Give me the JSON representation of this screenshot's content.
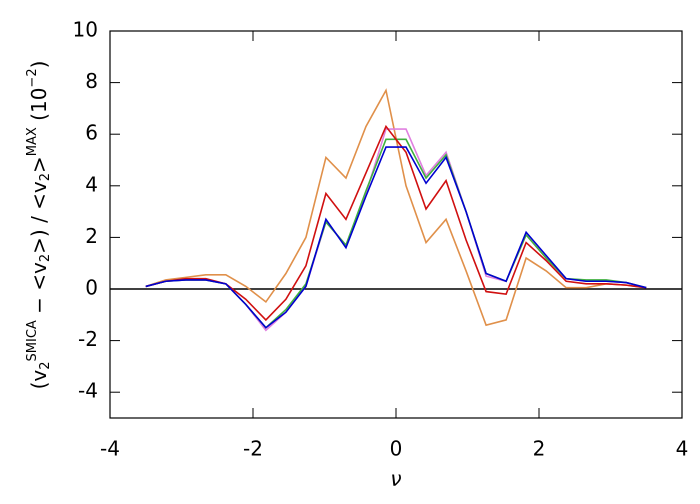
{
  "chart_data": {
    "type": "line",
    "xlabel": "ν",
    "ylabel": [
      "(v",
      "2",
      "SMICA",
      " − <v",
      "2",
      ">) / <v",
      "2",
      ">",
      "MAX",
      " (10",
      "−2",
      ")"
    ],
    "x": [
      -3.5,
      -3.22,
      -2.94,
      -2.66,
      -2.38,
      -2.1,
      -1.82,
      -1.54,
      -1.26,
      -0.98,
      -0.7,
      -0.42,
      -0.14,
      0.14,
      0.42,
      0.7,
      0.98,
      1.26,
      1.54,
      1.82,
      2.1,
      2.38,
      2.66,
      2.94,
      3.22,
      3.5
    ],
    "series": [
      {
        "color": "#e0904a",
        "values": [
          0.1,
          0.35,
          0.45,
          0.55,
          0.55,
          0.1,
          -0.5,
          0.6,
          2.0,
          5.1,
          4.3,
          6.3,
          7.7,
          4.0,
          1.8,
          2.7,
          0.7,
          -1.4,
          -1.2,
          1.2,
          0.7,
          0.05,
          0.05,
          0.2,
          0.15,
          0.05
        ]
      },
      {
        "color": "#e080e0",
        "values": [
          0.1,
          0.3,
          0.35,
          0.35,
          0.2,
          -0.6,
          -1.6,
          -0.9,
          0.1,
          2.6,
          1.7,
          3.7,
          6.2,
          6.2,
          4.4,
          5.3,
          3.0,
          0.5,
          0.3,
          2.1,
          1.2,
          0.4,
          0.3,
          0.3,
          0.25,
          0.05
        ]
      },
      {
        "color": "#40b040",
        "values": [
          0.1,
          0.3,
          0.35,
          0.35,
          0.2,
          -0.6,
          -1.5,
          -0.8,
          0.2,
          2.6,
          1.7,
          3.8,
          5.8,
          5.8,
          4.3,
          5.2,
          3.0,
          0.6,
          0.3,
          2.1,
          1.2,
          0.4,
          0.35,
          0.35,
          0.25,
          0.05
        ]
      },
      {
        "color": "#d01010",
        "values": [
          0.1,
          0.3,
          0.4,
          0.4,
          0.2,
          -0.4,
          -1.2,
          -0.4,
          0.9,
          3.7,
          2.7,
          4.5,
          6.3,
          5.3,
          3.1,
          4.2,
          1.9,
          -0.1,
          -0.2,
          1.8,
          1.1,
          0.3,
          0.2,
          0.2,
          0.15,
          0.05
        ]
      },
      {
        "color": "#0000d0",
        "values": [
          0.1,
          0.3,
          0.35,
          0.35,
          0.2,
          -0.6,
          -1.5,
          -0.9,
          0.1,
          2.7,
          1.6,
          3.6,
          5.5,
          5.5,
          4.1,
          5.1,
          3.0,
          0.6,
          0.3,
          2.2,
          1.3,
          0.4,
          0.3,
          0.3,
          0.25,
          0.05
        ]
      }
    ],
    "xlim": [
      -4,
      4
    ],
    "xticks": [
      -4,
      -2,
      0,
      2,
      4
    ],
    "ylim": [
      -5,
      10
    ],
    "yticks": [
      -4,
      -2,
      0,
      2,
      4,
      6,
      8,
      10
    ],
    "zero_line": true,
    "grid": false
  }
}
